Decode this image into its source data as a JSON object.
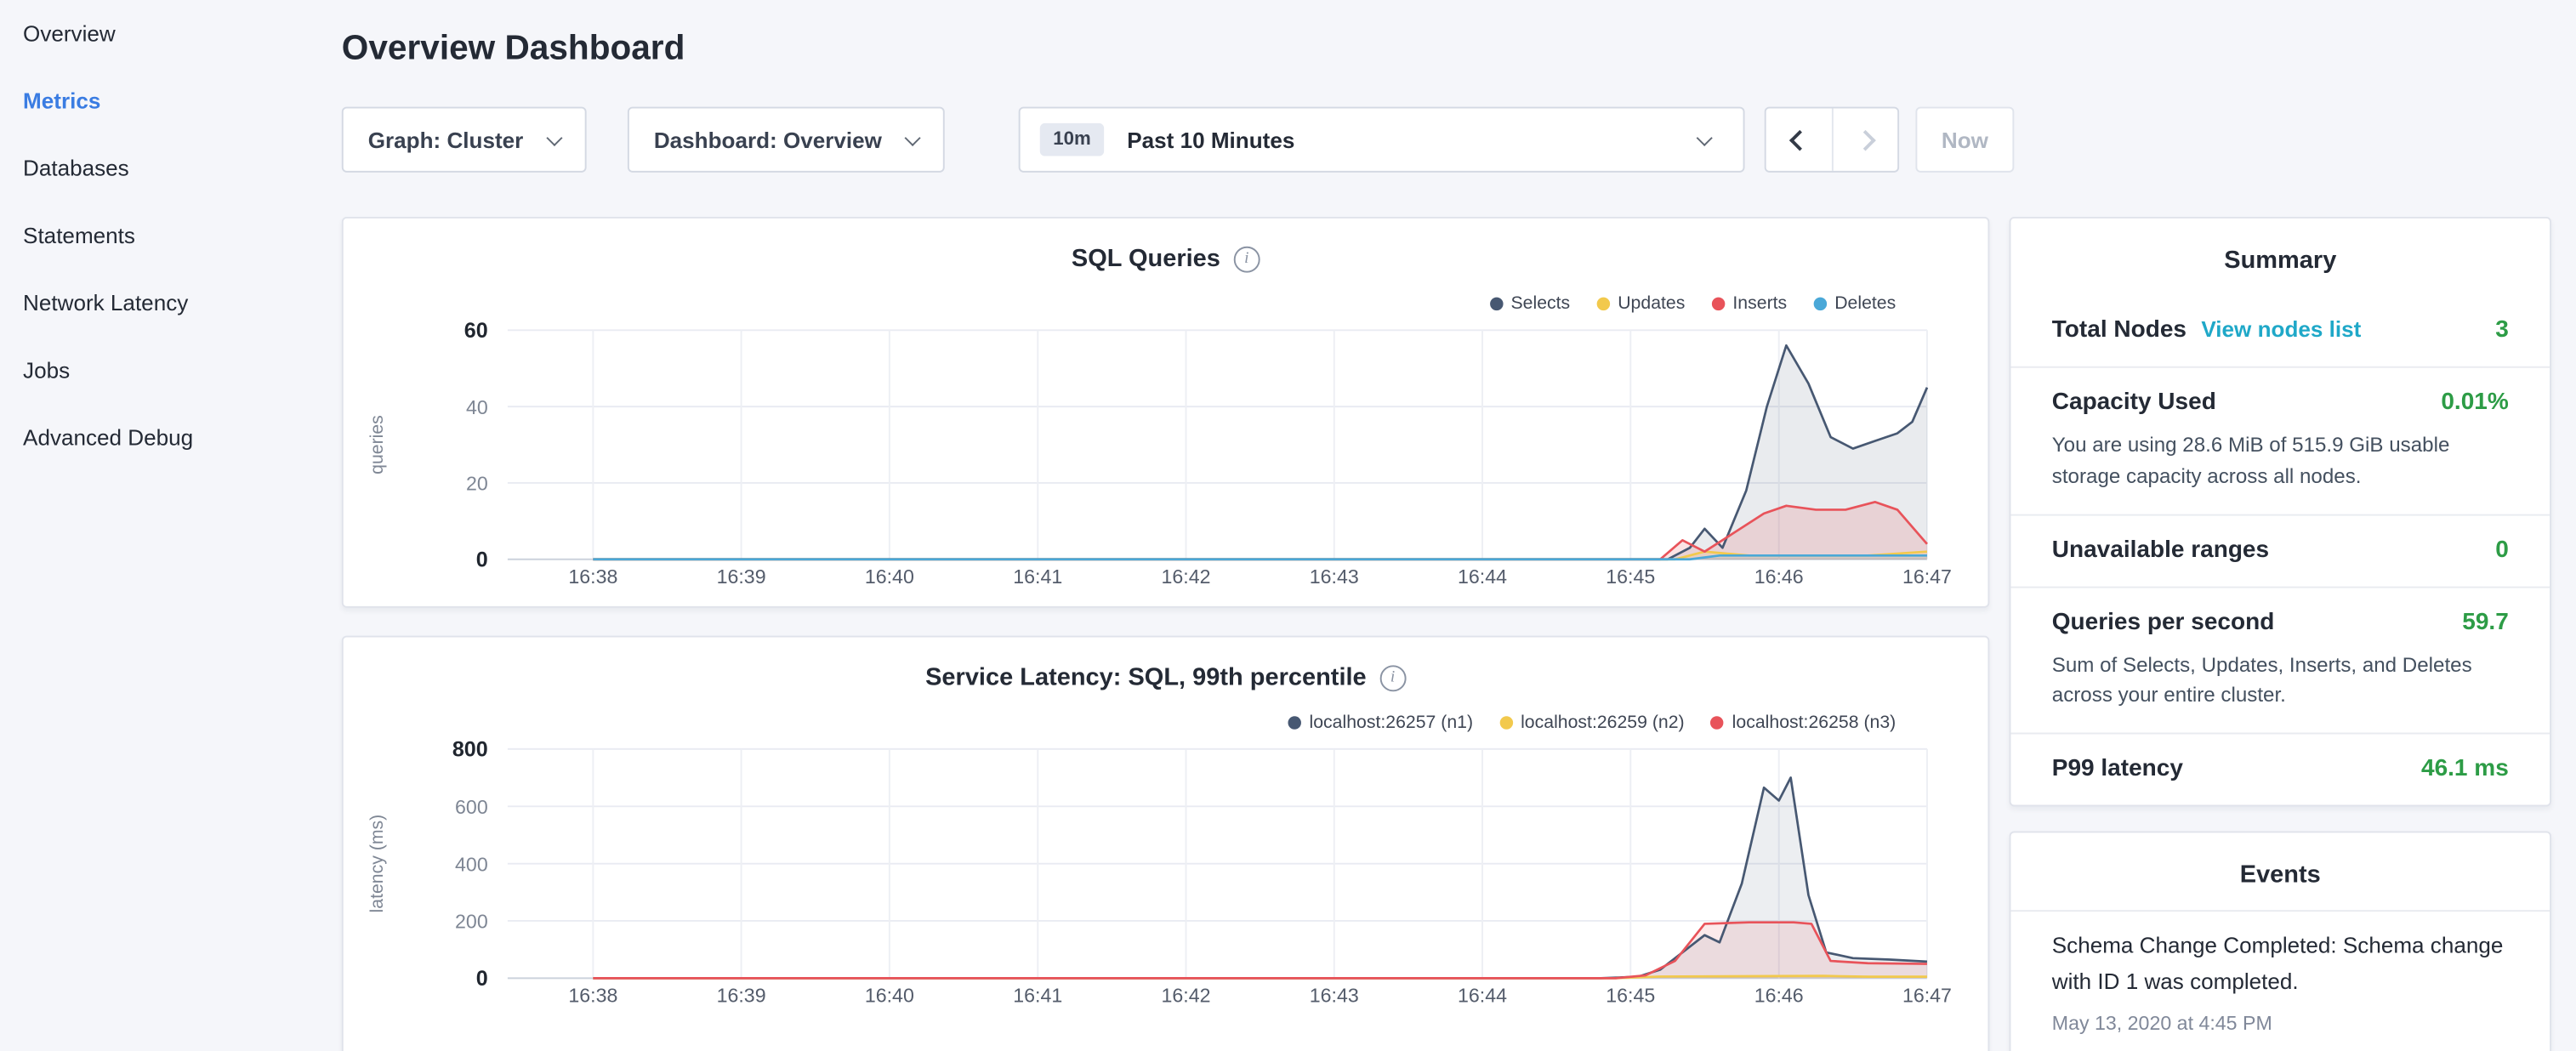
{
  "colors": {
    "accent_blue": "#3a7ce2",
    "value_green": "#2d9c46",
    "link_teal": "#1fa8c8"
  },
  "icons": {
    "info": "i"
  },
  "sidebar": {
    "items": [
      {
        "label": "Overview",
        "active": false
      },
      {
        "label": "Metrics",
        "active": true
      },
      {
        "label": "Databases",
        "active": false
      },
      {
        "label": "Statements",
        "active": false
      },
      {
        "label": "Network Latency",
        "active": false
      },
      {
        "label": "Jobs",
        "active": false
      },
      {
        "label": "Advanced Debug",
        "active": false
      }
    ]
  },
  "header": {
    "title": "Overview Dashboard"
  },
  "controls": {
    "graph_dropdown": "Graph: Cluster",
    "dashboard_dropdown": "Dashboard: Overview",
    "time_badge": "10m",
    "time_label": "Past 10 Minutes",
    "now_label": "Now"
  },
  "summary": {
    "title": "Summary",
    "rows": [
      {
        "label": "Total Nodes",
        "link": "View nodes list",
        "value": "3"
      },
      {
        "label": "Capacity Used",
        "value": "0.01%",
        "description": "You are using 28.6 MiB of 515.9 GiB usable storage capacity across all nodes."
      },
      {
        "label": "Unavailable ranges",
        "value": "0"
      },
      {
        "label": "Queries per second",
        "value": "59.7",
        "description": "Sum of Selects, Updates, Inserts, and Deletes across your entire cluster."
      },
      {
        "label": "P99 latency",
        "value": "46.1 ms"
      }
    ]
  },
  "events": {
    "title": "Events",
    "items": [
      {
        "text": "Schema Change Completed: Schema change with ID 1 was completed.",
        "time": "May 13, 2020 at 4:45 PM"
      }
    ]
  },
  "chart_data": [
    {
      "type": "line",
      "title": "SQL Queries",
      "ylabel": "queries",
      "ylim": [
        0,
        60
      ],
      "yticks": [
        0,
        20,
        40,
        60
      ],
      "categories": [
        "16:38",
        "16:39",
        "16:40",
        "16:41",
        "16:42",
        "16:43",
        "16:44",
        "16:45",
        "16:46",
        "16:47"
      ],
      "legend_position": "top-right",
      "grid": true,
      "series": [
        {
          "name": "Selects",
          "color": "#475872",
          "fill": "rgba(71,88,114,0.12)",
          "points": [
            [
              0,
              0
            ],
            [
              1,
              0
            ],
            [
              2,
              0
            ],
            [
              3,
              0
            ],
            [
              4,
              0
            ],
            [
              5,
              0
            ],
            [
              6,
              0
            ],
            [
              7,
              0
            ],
            [
              7.25,
              0
            ],
            [
              7.4,
              3
            ],
            [
              7.5,
              8
            ],
            [
              7.62,
              3
            ],
            [
              7.78,
              18
            ],
            [
              7.92,
              40
            ],
            [
              8.05,
              56
            ],
            [
              8.2,
              46
            ],
            [
              8.35,
              32
            ],
            [
              8.5,
              29
            ],
            [
              8.65,
              31
            ],
            [
              8.8,
              33
            ],
            [
              8.9,
              36
            ],
            [
              9,
              45
            ]
          ]
        },
        {
          "name": "Updates",
          "color": "#f2c94c",
          "fill": "rgba(242,201,76,0.15)",
          "points": [
            [
              0,
              0
            ],
            [
              6,
              0
            ],
            [
              7.3,
              0
            ],
            [
              7.5,
              2
            ],
            [
              7.8,
              1
            ],
            [
              8.2,
              1
            ],
            [
              8.6,
              1
            ],
            [
              9,
              2
            ]
          ]
        },
        {
          "name": "Inserts",
          "color": "#e8535a",
          "fill": "rgba(232,83,90,0.16)",
          "points": [
            [
              0,
              0
            ],
            [
              6,
              0
            ],
            [
              7.2,
              0
            ],
            [
              7.35,
              5
            ],
            [
              7.5,
              2
            ],
            [
              7.7,
              7
            ],
            [
              7.9,
              12
            ],
            [
              8.05,
              14
            ],
            [
              8.25,
              13
            ],
            [
              8.45,
              13
            ],
            [
              8.65,
              15
            ],
            [
              8.8,
              13
            ],
            [
              9,
              4
            ]
          ]
        },
        {
          "name": "Deletes",
          "color": "#4aa8d8",
          "fill": "rgba(74,168,216,0.12)",
          "points": [
            [
              0,
              0
            ],
            [
              6,
              0
            ],
            [
              7.4,
              0
            ],
            [
              7.6,
              1
            ],
            [
              8,
              1
            ],
            [
              8.5,
              1
            ],
            [
              9,
              1
            ]
          ]
        }
      ]
    },
    {
      "type": "line",
      "title": "Service Latency: SQL, 99th percentile",
      "ylabel": "latency (ms)",
      "ylim": [
        0,
        800
      ],
      "yticks": [
        0,
        200,
        400,
        600,
        800
      ],
      "categories": [
        "16:38",
        "16:39",
        "16:40",
        "16:41",
        "16:42",
        "16:43",
        "16:44",
        "16:45",
        "16:46",
        "16:47"
      ],
      "legend_position": "top-right",
      "grid": true,
      "series": [
        {
          "name": "localhost:26257 (n1)",
          "color": "#475872",
          "fill": "rgba(71,88,114,0.10)",
          "points": [
            [
              0,
              0
            ],
            [
              1,
              0
            ],
            [
              2,
              0
            ],
            [
              3,
              0
            ],
            [
              4,
              0
            ],
            [
              5,
              0
            ],
            [
              6,
              0
            ],
            [
              6.8,
              0
            ],
            [
              7.05,
              5
            ],
            [
              7.2,
              30
            ],
            [
              7.35,
              90
            ],
            [
              7.5,
              150
            ],
            [
              7.6,
              125
            ],
            [
              7.75,
              330
            ],
            [
              7.9,
              665
            ],
            [
              8,
              620
            ],
            [
              8.08,
              700
            ],
            [
              8.2,
              290
            ],
            [
              8.32,
              90
            ],
            [
              8.5,
              70
            ],
            [
              8.75,
              65
            ],
            [
              9,
              58
            ]
          ]
        },
        {
          "name": "localhost:26259 (n2)",
          "color": "#f2c94c",
          "fill": "rgba(242,201,76,0.12)",
          "points": [
            [
              0,
              0
            ],
            [
              6.9,
              0
            ],
            [
              7.2,
              6
            ],
            [
              8.3,
              8
            ],
            [
              8.6,
              5
            ],
            [
              9,
              5
            ]
          ]
        },
        {
          "name": "localhost:26258 (n3)",
          "color": "#e8535a",
          "fill": "rgba(232,83,90,0.12)",
          "points": [
            [
              0,
              0
            ],
            [
              6.9,
              0
            ],
            [
              7.1,
              10
            ],
            [
              7.3,
              60
            ],
            [
              7.5,
              190
            ],
            [
              7.8,
              195
            ],
            [
              8.1,
              195
            ],
            [
              8.22,
              190
            ],
            [
              8.35,
              60
            ],
            [
              8.6,
              52
            ],
            [
              9,
              50
            ]
          ]
        }
      ]
    }
  ]
}
